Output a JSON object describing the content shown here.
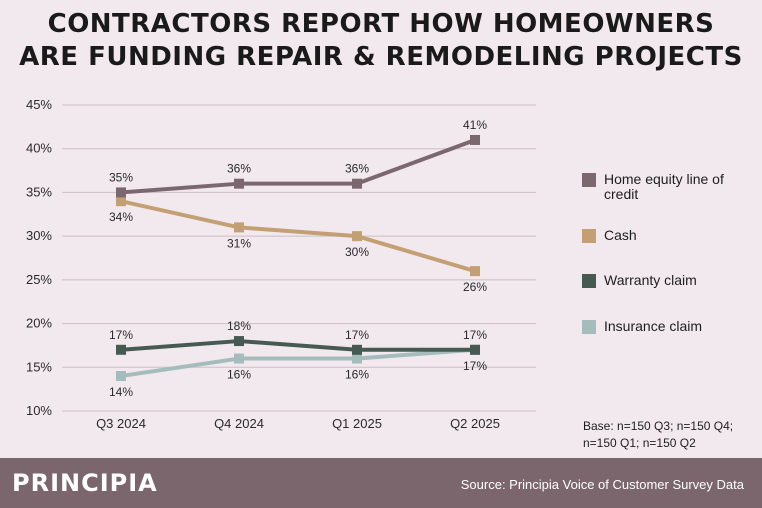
{
  "header": {
    "title_line1": "CONTRACTORS REPORT HOW HOMEOWNERS",
    "title_line2": "ARE FUNDING REPAIR & REMODELING PROJECTS"
  },
  "chart_data": {
    "type": "line",
    "title": "CONTRACTORS REPORT HOW HOMEOWNERS ARE FUNDING REPAIR & REMODELING PROJECTS",
    "categories": [
      "Q3 2024",
      "Q4 2024",
      "Q1 2025",
      "Q2 2025"
    ],
    "ylim": [
      10,
      45
    ],
    "yticks": [
      10,
      15,
      20,
      25,
      30,
      35,
      40,
      45
    ],
    "ytick_labels": [
      "10%",
      "15%",
      "20%",
      "25%",
      "30%",
      "35%",
      "40%",
      "45%"
    ],
    "unit": "%",
    "grid": true,
    "legend_position": "right",
    "series": [
      {
        "name": "Home equity line of credit",
        "color": "#7d676e",
        "values": [
          35,
          36,
          36,
          41
        ],
        "label_pos": [
          "above",
          "above",
          "above",
          "above"
        ]
      },
      {
        "name": "Cash",
        "color": "#c3a074",
        "values": [
          34,
          31,
          30,
          26
        ],
        "label_pos": [
          "below",
          "below",
          "below",
          "below"
        ]
      },
      {
        "name": "Warranty claim",
        "color": "#475a51",
        "values": [
          17,
          18,
          17,
          17
        ],
        "label_pos": [
          "above",
          "above",
          "above",
          "above"
        ]
      },
      {
        "name": "Insurance claim",
        "color": "#a4bcbb",
        "values": [
          14,
          16,
          16,
          17
        ],
        "label_pos": [
          "below",
          "below",
          "below",
          "below"
        ]
      }
    ]
  },
  "notes": {
    "base": "Base: n=150 Q3; n=150 Q4; n=150 Q1; n=150 Q2"
  },
  "footer": {
    "brand": "PRINCIPIA",
    "source": "Source: Principia Voice of Customer Survey Data"
  }
}
